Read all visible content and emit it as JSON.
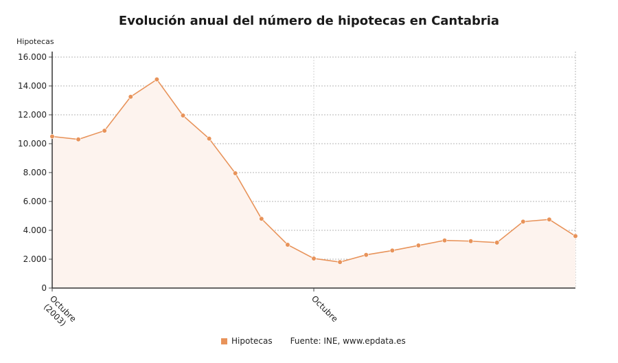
{
  "chart_data": {
    "type": "area",
    "title": "Evolución anual del número de hipotecas en Cantabria",
    "ylabel": "Hipotecas",
    "xlabel": "",
    "ylim": [
      0,
      16000
    ],
    "y_ticks": [
      "0",
      "2.000",
      "4.000",
      "6.000",
      "8.000",
      "10.000",
      "12.000",
      "14.000",
      "16.000"
    ],
    "x_tick_labels": [
      {
        "index": 0,
        "lines": [
          "Octubre",
          "(2003)"
        ]
      },
      {
        "index": 10,
        "lines": [
          "Octubre"
        ]
      }
    ],
    "series": [
      {
        "name": "Hipotecas",
        "values": [
          10500,
          10300,
          10900,
          13250,
          14450,
          11950,
          10350,
          7950,
          4800,
          3000,
          2050,
          1800,
          2300,
          2600,
          2950,
          3300,
          3250,
          3150,
          4600,
          4750,
          3600
        ]
      }
    ],
    "grid": true,
    "legend": "bottom",
    "colors": {
      "line": "#e8935a",
      "fill": "#fdf3ee",
      "grid": "#b5b5b5"
    },
    "source": "Fuente: INE, www.epdata.es"
  }
}
